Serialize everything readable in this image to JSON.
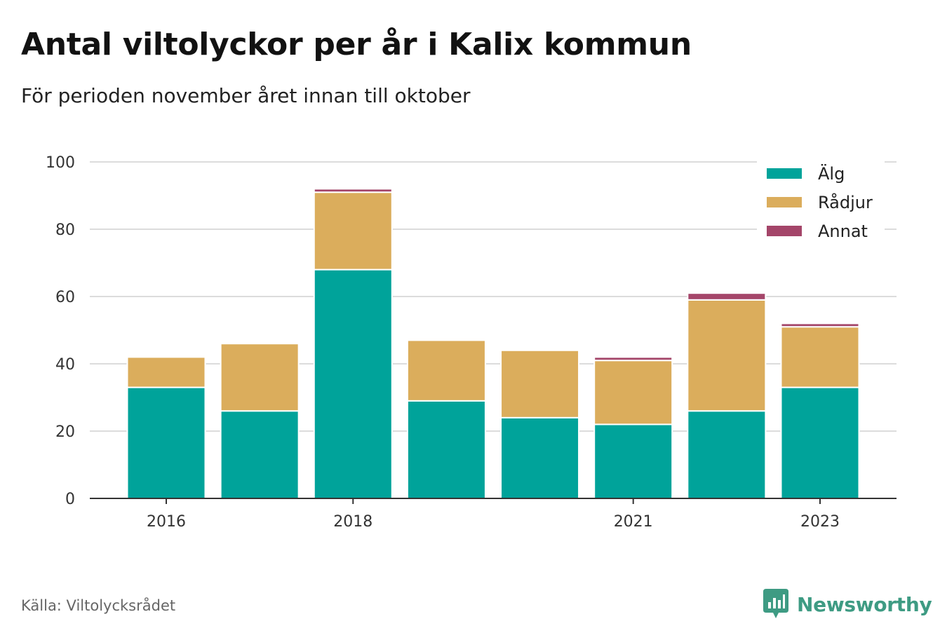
{
  "title": "Antal viltolyckor per år i Kalix kommun",
  "subtitle": "För perioden november året innan till oktober",
  "source": "Källa: Viltolycksrådet",
  "brand": {
    "name": "Newsworthy",
    "color": "#3e9b83",
    "icon": "newsworthy-logo-icon"
  },
  "chart_data": {
    "type": "bar",
    "stacked": true,
    "categories": [
      2016,
      2017,
      2018,
      2019,
      2020,
      2021,
      2022,
      2023
    ],
    "x_tick_labels": [
      "2016",
      "2018",
      "2021",
      "2023"
    ],
    "x_tick_values": [
      2016,
      2018,
      2021,
      2023
    ],
    "y_ticks": [
      0,
      20,
      40,
      60,
      80,
      100
    ],
    "ylim": [
      0,
      100
    ],
    "grid": true,
    "legend_position": "top-right",
    "series": [
      {
        "name": "Älg",
        "color": "#00a39a",
        "values": [
          33,
          26,
          68,
          29,
          24,
          22,
          26,
          33
        ]
      },
      {
        "name": "Rådjur",
        "color": "#dbad5c",
        "values": [
          9,
          20,
          23,
          18,
          20,
          19,
          33,
          18
        ]
      },
      {
        "name": "Annat",
        "color": "#a44569",
        "values": [
          0,
          0,
          1,
          0,
          0,
          1,
          2,
          1
        ]
      }
    ]
  }
}
